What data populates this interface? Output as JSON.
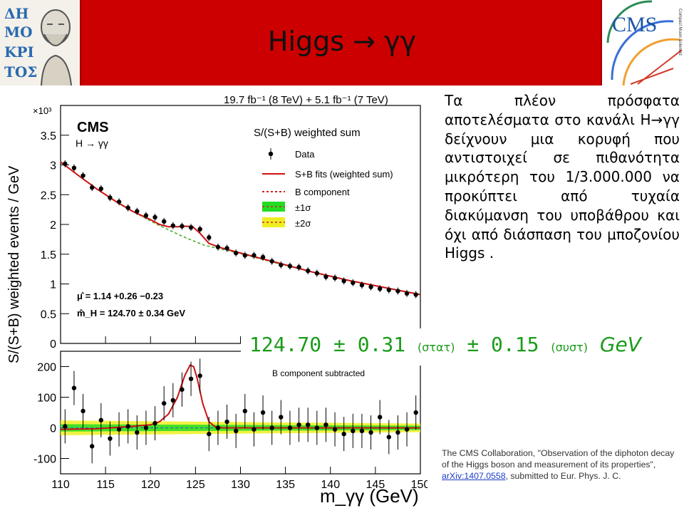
{
  "header": {
    "title": "Higgs → γγ",
    "left_logo_text": "ΔΗΜΟΚΡΙΤΟΣ",
    "right_logo_text": "CMS",
    "right_logo_subtext": "Compact Muon Solenoid"
  },
  "colors": {
    "banner": "#cc0000",
    "result_text": "#1a9c1a",
    "fit_line": "#cc1111",
    "band_1sigma": "#22dd22",
    "band_2sigma": "#eeee22"
  },
  "chart_data": [
    {
      "type": "scatter",
      "panel": "main",
      "title": "19.7 fb⁻¹ (8 TeV) + 5.1 fb⁻¹ (7 TeV)",
      "experiment": "CMS",
      "channel": "H → γγ",
      "subtitle": "S/(S+B) weighted sum",
      "ylabel": "S/(S+B) weighted events / GeV",
      "yscale_label": "×10³",
      "xlabel": "m_γγ (GeV)",
      "xlim": [
        110,
        150
      ],
      "ylim": [
        0,
        4
      ],
      "yticks": [
        "0",
        "0.5",
        "1",
        "1.5",
        "2",
        "2.5",
        "3",
        "3.5",
        "4"
      ],
      "legend": [
        "Data",
        "S+B fits (weighted sum)",
        "B component",
        "±1σ",
        "±2σ"
      ],
      "legend_position": "top-right",
      "annotations": [
        "μ̂ = 1.14 +0.26 −0.23",
        "m̂_H = 124.70 ± 0.34 GeV"
      ],
      "series": [
        {
          "name": "Data",
          "x": [
            110,
            111,
            112,
            113,
            114,
            115,
            116,
            117,
            118,
            119,
            120,
            121,
            122,
            123,
            124,
            125,
            126,
            127,
            128,
            129,
            130,
            131,
            132,
            133,
            134,
            135,
            136,
            137,
            138,
            139,
            140,
            141,
            142,
            143,
            144,
            145,
            146,
            147,
            148,
            149
          ],
          "y": [
            3.02,
            2.95,
            2.82,
            2.62,
            2.6,
            2.45,
            2.38,
            2.28,
            2.22,
            2.15,
            2.12,
            2.05,
            1.98,
            1.97,
            1.95,
            1.92,
            1.78,
            1.62,
            1.6,
            1.52,
            1.48,
            1.48,
            1.45,
            1.38,
            1.32,
            1.3,
            1.28,
            1.22,
            1.18,
            1.12,
            1.1,
            1.05,
            1.02,
            0.98,
            0.95,
            0.92,
            0.9,
            0.88,
            0.84,
            0.82
          ]
        },
        {
          "name": "S+B fits (weighted sum)",
          "x": [
            110,
            112,
            114,
            116,
            118,
            120,
            121,
            122,
            123,
            124,
            124.7,
            125.5,
            126.5,
            128,
            130,
            132,
            134,
            136,
            138,
            140,
            142,
            144,
            146,
            148,
            150
          ],
          "y": [
            3.05,
            2.82,
            2.6,
            2.4,
            2.22,
            2.08,
            2.0,
            1.96,
            1.96,
            1.97,
            1.96,
            1.85,
            1.68,
            1.6,
            1.52,
            1.44,
            1.36,
            1.28,
            1.2,
            1.13,
            1.06,
            1.0,
            0.94,
            0.88,
            0.82
          ]
        },
        {
          "name": "B component",
          "x": [
            110,
            112,
            114,
            116,
            118,
            120,
            121,
            122,
            123,
            124,
            125,
            126,
            128,
            130,
            132,
            134,
            136,
            138,
            140,
            142,
            144,
            146,
            148,
            150
          ],
          "y": [
            3.05,
            2.82,
            2.6,
            2.4,
            2.22,
            2.06,
            1.98,
            1.91,
            1.84,
            1.77,
            1.71,
            1.65,
            1.58,
            1.51,
            1.43,
            1.35,
            1.28,
            1.2,
            1.13,
            1.06,
            1.0,
            0.94,
            0.88,
            0.82
          ]
        }
      ]
    },
    {
      "type": "scatter",
      "panel": "residual",
      "label": "B component subtracted",
      "xlabel": "m_γγ (GeV)",
      "xlim": [
        110,
        150
      ],
      "ylim": [
        -150,
        250
      ],
      "yticks": [
        "-100",
        "0",
        "100",
        "200"
      ],
      "xticks": [
        "110",
        "115",
        "120",
        "125",
        "130",
        "135",
        "140",
        "145",
        "150"
      ],
      "series": [
        {
          "name": "Data",
          "x": [
            110,
            111,
            112,
            113,
            114,
            115,
            116,
            117,
            118,
            119,
            120,
            121,
            122,
            123,
            124,
            125,
            126,
            127,
            128,
            129,
            130,
            131,
            132,
            133,
            134,
            135,
            136,
            137,
            138,
            139,
            140,
            141,
            142,
            143,
            144,
            145,
            146,
            147,
            148,
            149
          ],
          "y": [
            5,
            130,
            55,
            -60,
            25,
            -35,
            -5,
            5,
            -15,
            0,
            15,
            80,
            90,
            125,
            160,
            170,
            -20,
            0,
            20,
            -10,
            55,
            -5,
            50,
            0,
            35,
            0,
            10,
            10,
            0,
            10,
            -5,
            -20,
            -10,
            -10,
            -15,
            35,
            -30,
            -15,
            -5,
            50
          ]
        },
        {
          "name": "S+B fit",
          "x": [
            110,
            114,
            118,
            120,
            121,
            122,
            123,
            123.8,
            124.4,
            124.8,
            125.2,
            125.8,
            126.5,
            127.2,
            128,
            130,
            135,
            140,
            145,
            150
          ],
          "y": [
            -5,
            -3,
            5,
            10,
            20,
            45,
            100,
            170,
            205,
            200,
            160,
            80,
            20,
            3,
            0,
            0,
            0,
            0,
            0,
            0
          ]
        },
        {
          "name": "±1σ",
          "band_half_width": [
            12,
            7
          ]
        },
        {
          "name": "±2σ",
          "band_half_width": [
            24,
            14
          ]
        }
      ]
    }
  ],
  "main_text": "Τα πλέον πρόσφατα αποτελέσματα στο κανάλι H→γγ δείχνουν μια κορυφή που αντιστοιχεί σε πιθανότητα μικρότερη του 1/3.000.000 να προκύπτει από τυχαία διακύμανση του υποβάθρου και όχι από διάσπαση του μποζονίου Higgs .",
  "result": {
    "value": "124.70 ± 0.31",
    "stat_label": "(στατ)",
    "syst_part": "± 0.15",
    "syst_label": "(συστ)",
    "unit": "GeV"
  },
  "reference": {
    "text_before": "The CMS Collaboration, \"Observation of the diphoton decay of the Higgs boson and measurement of its properties\", ",
    "link": "arXiv:1407.0558",
    "text_after": ", submitted to Eur. Phys. J. C."
  }
}
